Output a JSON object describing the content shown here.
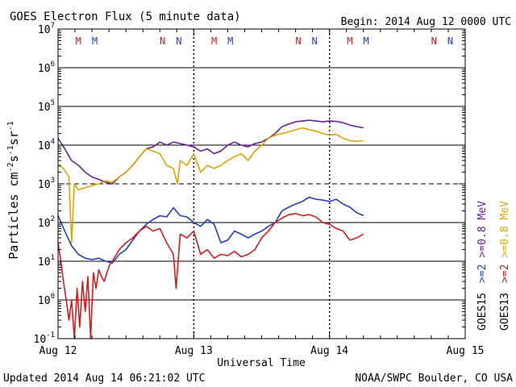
{
  "header": {
    "title": "GOES Electron Flux (5 minute data)",
    "begin": "Begin: 2014 Aug 12 0000 UTC"
  },
  "footer": {
    "updated": "Updated 2014 Aug 14 06:21:02 UTC",
    "credit": "NOAA/SWPC Boulder, CO USA"
  },
  "legend": {
    "line1_prefix": "GOES15",
    "line1_a": ">=2",
    "line1_b": ">=0.8 MeV",
    "line2_prefix": "GOES13",
    "line2_a": ">=2",
    "line2_b": ">=0.8 MeV"
  },
  "colors": {
    "goes15_2mev": "#1f3fc8",
    "goes15_08mev": "#6a1f9a",
    "goes13_2mev": "#e01818",
    "goes13_08mev": "#e0a400",
    "marker_M": "#d01818",
    "marker_N": "#1f3fc8"
  },
  "markers": [
    {
      "label": "M",
      "day": 0.15,
      "color": "#d01818"
    },
    {
      "label": "M",
      "day": 0.27,
      "color": "#1f3fc8"
    },
    {
      "label": "N",
      "day": 0.77,
      "color": "#d01818"
    },
    {
      "label": "N",
      "day": 0.89,
      "color": "#1f3fc8"
    },
    {
      "label": "M",
      "day": 1.15,
      "color": "#d01818"
    },
    {
      "label": "M",
      "day": 1.27,
      "color": "#1f3fc8"
    },
    {
      "label": "N",
      "day": 1.77,
      "color": "#d01818"
    },
    {
      "label": "N",
      "day": 1.89,
      "color": "#1f3fc8"
    },
    {
      "label": "M",
      "day": 2.15,
      "color": "#d01818"
    },
    {
      "label": "M",
      "day": 2.27,
      "color": "#1f3fc8"
    },
    {
      "label": "N",
      "day": 2.77,
      "color": "#d01818"
    },
    {
      "label": "N",
      "day": 2.89,
      "color": "#1f3fc8"
    }
  ],
  "chart_data": {
    "type": "line",
    "title": "GOES Electron Flux (5 minute data)",
    "xlabel": "Universal Time",
    "ylabel": "Particles cm-2s-1sr-1",
    "yscale": "log",
    "ylim": [
      0.1,
      10000000
    ],
    "xlim": [
      0,
      3
    ],
    "x_unit": "days since 2014 Aug 12 0000 UTC",
    "x_tick_labels": [
      "Aug 12",
      "Aug 13",
      "Aug 14",
      "Aug 15"
    ],
    "y_tick_labels": [
      {
        "base": "10",
        "exp": "-1"
      },
      {
        "base": "10",
        "exp": "0"
      },
      {
        "base": "10",
        "exp": "1"
      },
      {
        "base": "10",
        "exp": "2"
      },
      {
        "base": "10",
        "exp": "3"
      },
      {
        "base": "10",
        "exp": "4"
      },
      {
        "base": "10",
        "exp": "5"
      },
      {
        "base": "10",
        "exp": "6"
      },
      {
        "base": "10",
        "exp": "7"
      }
    ],
    "alert_threshold": 1000,
    "series": [
      {
        "name": "GOES15 >=0.8 MeV",
        "color": "#6a1f9a",
        "x": [
          0.0,
          0.05,
          0.1,
          0.15,
          0.2,
          0.25,
          0.3,
          0.35,
          0.4,
          0.45,
          0.5,
          0.55,
          0.6,
          0.65,
          0.7,
          0.75,
          0.8,
          0.85,
          0.9,
          0.95,
          1.0,
          1.05,
          1.1,
          1.15,
          1.2,
          1.25,
          1.3,
          1.35,
          1.4,
          1.45,
          1.5,
          1.55,
          1.6,
          1.65,
          1.7,
          1.75,
          1.8,
          1.85,
          1.9,
          1.95,
          2.0,
          2.05,
          2.1,
          2.15,
          2.2,
          2.25
        ],
        "y": [
          15000,
          8000,
          4000,
          3000,
          2000,
          1500,
          1300,
          1100,
          1000,
          1500,
          2000,
          3000,
          5000,
          8000,
          9000,
          12000,
          10000,
          12000,
          11000,
          10000,
          9000,
          7000,
          8000,
          6000,
          7000,
          10000,
          12000,
          10000,
          9000,
          11000,
          12000,
          15000,
          20000,
          30000,
          35000,
          40000,
          42000,
          44000,
          42000,
          40000,
          42000,
          41000,
          38000,
          33000,
          30000,
          28000
        ]
      },
      {
        "name": "GOES13 >=0.8 MeV",
        "color": "#e0a400",
        "x": [
          0.0,
          0.04,
          0.08,
          0.1,
          0.12,
          0.15,
          0.2,
          0.25,
          0.3,
          0.35,
          0.4,
          0.45,
          0.5,
          0.55,
          0.6,
          0.65,
          0.7,
          0.75,
          0.8,
          0.85,
          0.88,
          0.9,
          0.95,
          1.0,
          1.05,
          1.1,
          1.15,
          1.2,
          1.25,
          1.3,
          1.35,
          1.4,
          1.45,
          1.5,
          1.55,
          1.6,
          1.65,
          1.7,
          1.75,
          1.8,
          1.85,
          1.9,
          1.95,
          2.0,
          2.05,
          2.1,
          2.15,
          2.2,
          2.25
        ],
        "y": [
          3000,
          2500,
          1500,
          30,
          1000,
          700,
          800,
          900,
          1000,
          1200,
          1100,
          1500,
          2000,
          3000,
          5000,
          8000,
          7000,
          6000,
          3000,
          2500,
          1000,
          4000,
          3000,
          6000,
          2000,
          3000,
          2500,
          3000,
          4000,
          5000,
          6000,
          4000,
          7000,
          10000,
          15000,
          18000,
          20000,
          22000,
          25000,
          28000,
          25000,
          23000,
          20000,
          18000,
          19000,
          15000,
          13000,
          12500,
          13000
        ]
      },
      {
        "name": "GOES15 >=2 MeV",
        "color": "#1f3fc8",
        "x": [
          0.0,
          0.05,
          0.1,
          0.15,
          0.2,
          0.25,
          0.3,
          0.35,
          0.4,
          0.45,
          0.5,
          0.55,
          0.6,
          0.65,
          0.7,
          0.75,
          0.8,
          0.85,
          0.9,
          0.95,
          1.0,
          1.05,
          1.1,
          1.15,
          1.2,
          1.25,
          1.3,
          1.35,
          1.4,
          1.45,
          1.5,
          1.55,
          1.6,
          1.65,
          1.7,
          1.75,
          1.8,
          1.85,
          1.9,
          1.95,
          2.0,
          2.05,
          2.1,
          2.15,
          2.2,
          2.25
        ],
        "y": [
          150,
          60,
          25,
          15,
          12,
          11,
          12,
          10,
          9,
          15,
          20,
          35,
          60,
          90,
          120,
          150,
          140,
          240,
          150,
          140,
          100,
          80,
          120,
          90,
          30,
          35,
          60,
          50,
          40,
          50,
          60,
          80,
          100,
          200,
          250,
          300,
          350,
          450,
          400,
          380,
          350,
          400,
          300,
          250,
          180,
          150
        ]
      },
      {
        "name": "GOES13 >=2 MeV",
        "color": "#e01818",
        "x": [
          0.0,
          0.02,
          0.04,
          0.06,
          0.08,
          0.1,
          0.12,
          0.14,
          0.16,
          0.18,
          0.2,
          0.22,
          0.24,
          0.26,
          0.28,
          0.3,
          0.32,
          0.34,
          0.36,
          0.38,
          0.4,
          0.45,
          0.5,
          0.55,
          0.6,
          0.65,
          0.7,
          0.75,
          0.8,
          0.85,
          0.87,
          0.9,
          0.95,
          1.0,
          1.05,
          1.1,
          1.15,
          1.2,
          1.25,
          1.3,
          1.35,
          1.4,
          1.45,
          1.5,
          1.55,
          1.6,
          1.65,
          1.7,
          1.75,
          1.8,
          1.85,
          1.9,
          1.95,
          2.0,
          2.05,
          2.1,
          2.15,
          2.2,
          2.25
        ],
        "y": [
          30,
          10,
          3,
          1,
          0.3,
          1,
          0.1,
          2,
          0.2,
          3,
          0.5,
          4,
          0.1,
          5,
          2,
          6,
          4,
          3,
          5,
          8,
          10,
          20,
          30,
          40,
          60,
          80,
          60,
          70,
          30,
          15,
          2,
          50,
          40,
          60,
          15,
          20,
          12,
          15,
          14,
          18,
          13,
          15,
          20,
          40,
          60,
          100,
          130,
          160,
          170,
          150,
          160,
          140,
          100,
          90,
          70,
          60,
          35,
          40,
          50
        ]
      }
    ]
  }
}
